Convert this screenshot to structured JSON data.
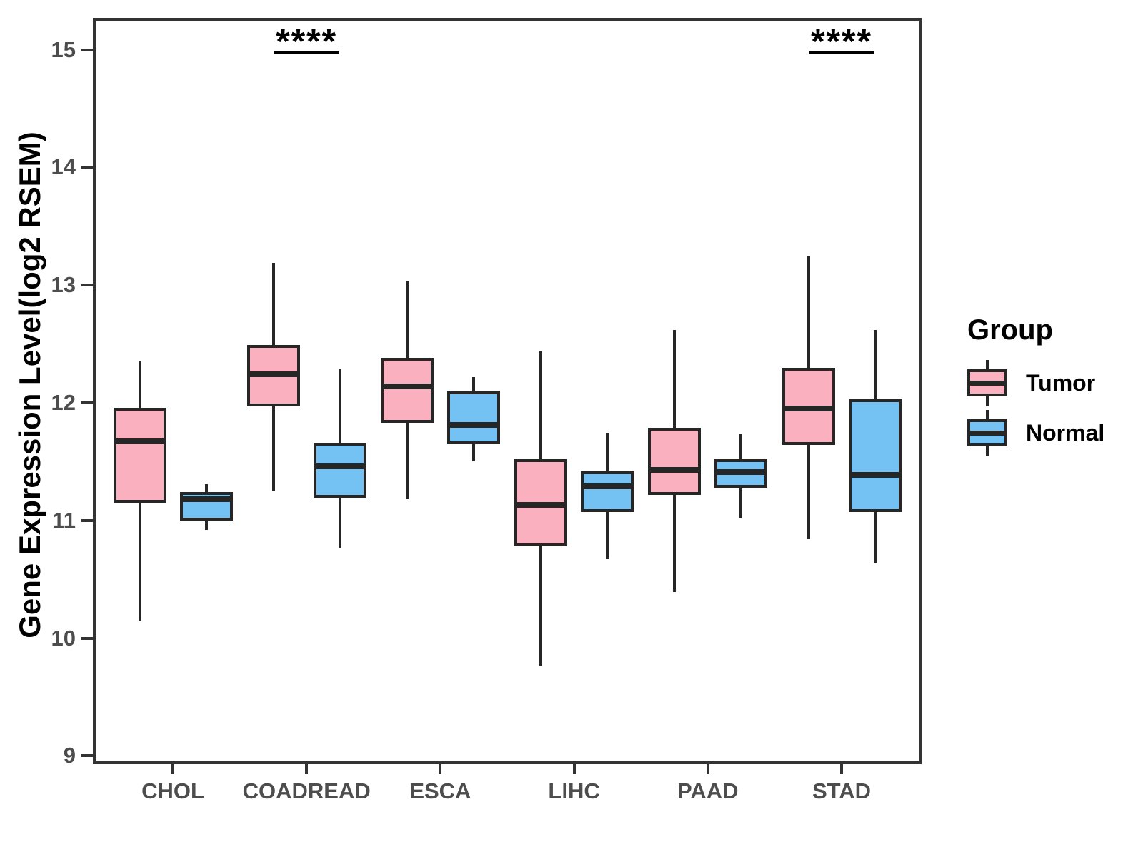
{
  "chart_data": {
    "type": "boxplot",
    "title": "",
    "xlabel": "",
    "ylabel": "Gene Expression Level(log2 RSEM)",
    "ylim": [
      8.93,
      15.27
    ],
    "yticks": [
      9,
      10,
      11,
      12,
      13,
      14,
      15
    ],
    "grid": false,
    "categories": [
      "CHOL",
      "COADREAD",
      "ESCA",
      "LIHC",
      "PAAD",
      "STAD"
    ],
    "legend": {
      "title": "Group",
      "position": "right",
      "entries": [
        {
          "label": "Tumor",
          "color": "#FBB0C0"
        },
        {
          "label": "Normal",
          "color": "#74C1F4"
        }
      ]
    },
    "significance_markers": [
      {
        "category": "COADREAD",
        "label": "****"
      },
      {
        "category": "STAD",
        "label": "****"
      }
    ],
    "series": [
      {
        "name": "Tumor",
        "color": "#FBB0C0",
        "boxes": [
          {
            "category": "CHOL",
            "whisker_low": 10.15,
            "q1": 11.15,
            "median": 11.67,
            "q3": 11.96,
            "whisker_high": 12.35
          },
          {
            "category": "COADREAD",
            "whisker_low": 11.25,
            "q1": 11.97,
            "median": 12.24,
            "q3": 12.49,
            "whisker_high": 13.19
          },
          {
            "category": "ESCA",
            "whisker_low": 11.18,
            "q1": 11.83,
            "median": 12.14,
            "q3": 12.38,
            "whisker_high": 13.03
          },
          {
            "category": "LIHC",
            "whisker_low": 9.76,
            "q1": 10.78,
            "median": 11.13,
            "q3": 11.52,
            "whisker_high": 12.44
          },
          {
            "category": "PAAD",
            "whisker_low": 10.39,
            "q1": 11.22,
            "median": 11.43,
            "q3": 11.79,
            "whisker_high": 12.62
          },
          {
            "category": "STAD",
            "whisker_low": 10.84,
            "q1": 11.64,
            "median": 11.95,
            "q3": 12.3,
            "whisker_high": 13.25
          }
        ]
      },
      {
        "name": "Normal",
        "color": "#74C1F4",
        "boxes": [
          {
            "category": "CHOL",
            "whisker_low": 10.92,
            "q1": 11.0,
            "median": 11.18,
            "q3": 11.24,
            "whisker_high": 11.31
          },
          {
            "category": "COADREAD",
            "whisker_low": 10.77,
            "q1": 11.19,
            "median": 11.46,
            "q3": 11.66,
            "whisker_high": 12.29
          },
          {
            "category": "ESCA",
            "whisker_low": 11.5,
            "q1": 11.65,
            "median": 11.81,
            "q3": 12.1,
            "whisker_high": 12.22
          },
          {
            "category": "LIHC",
            "whisker_low": 10.67,
            "q1": 11.07,
            "median": 11.29,
            "q3": 11.42,
            "whisker_high": 11.74
          },
          {
            "category": "PAAD",
            "whisker_low": 11.02,
            "q1": 11.28,
            "median": 11.41,
            "q3": 11.52,
            "whisker_high": 11.73
          },
          {
            "category": "STAD",
            "whisker_low": 10.64,
            "q1": 11.07,
            "median": 11.39,
            "q3": 12.03,
            "whisker_high": 12.62
          }
        ]
      }
    ],
    "colors": {
      "stroke": "#262626",
      "axis": "#333333",
      "tick_label": "#4d4d4d",
      "text": "#000000",
      "background": "#ffffff"
    }
  }
}
